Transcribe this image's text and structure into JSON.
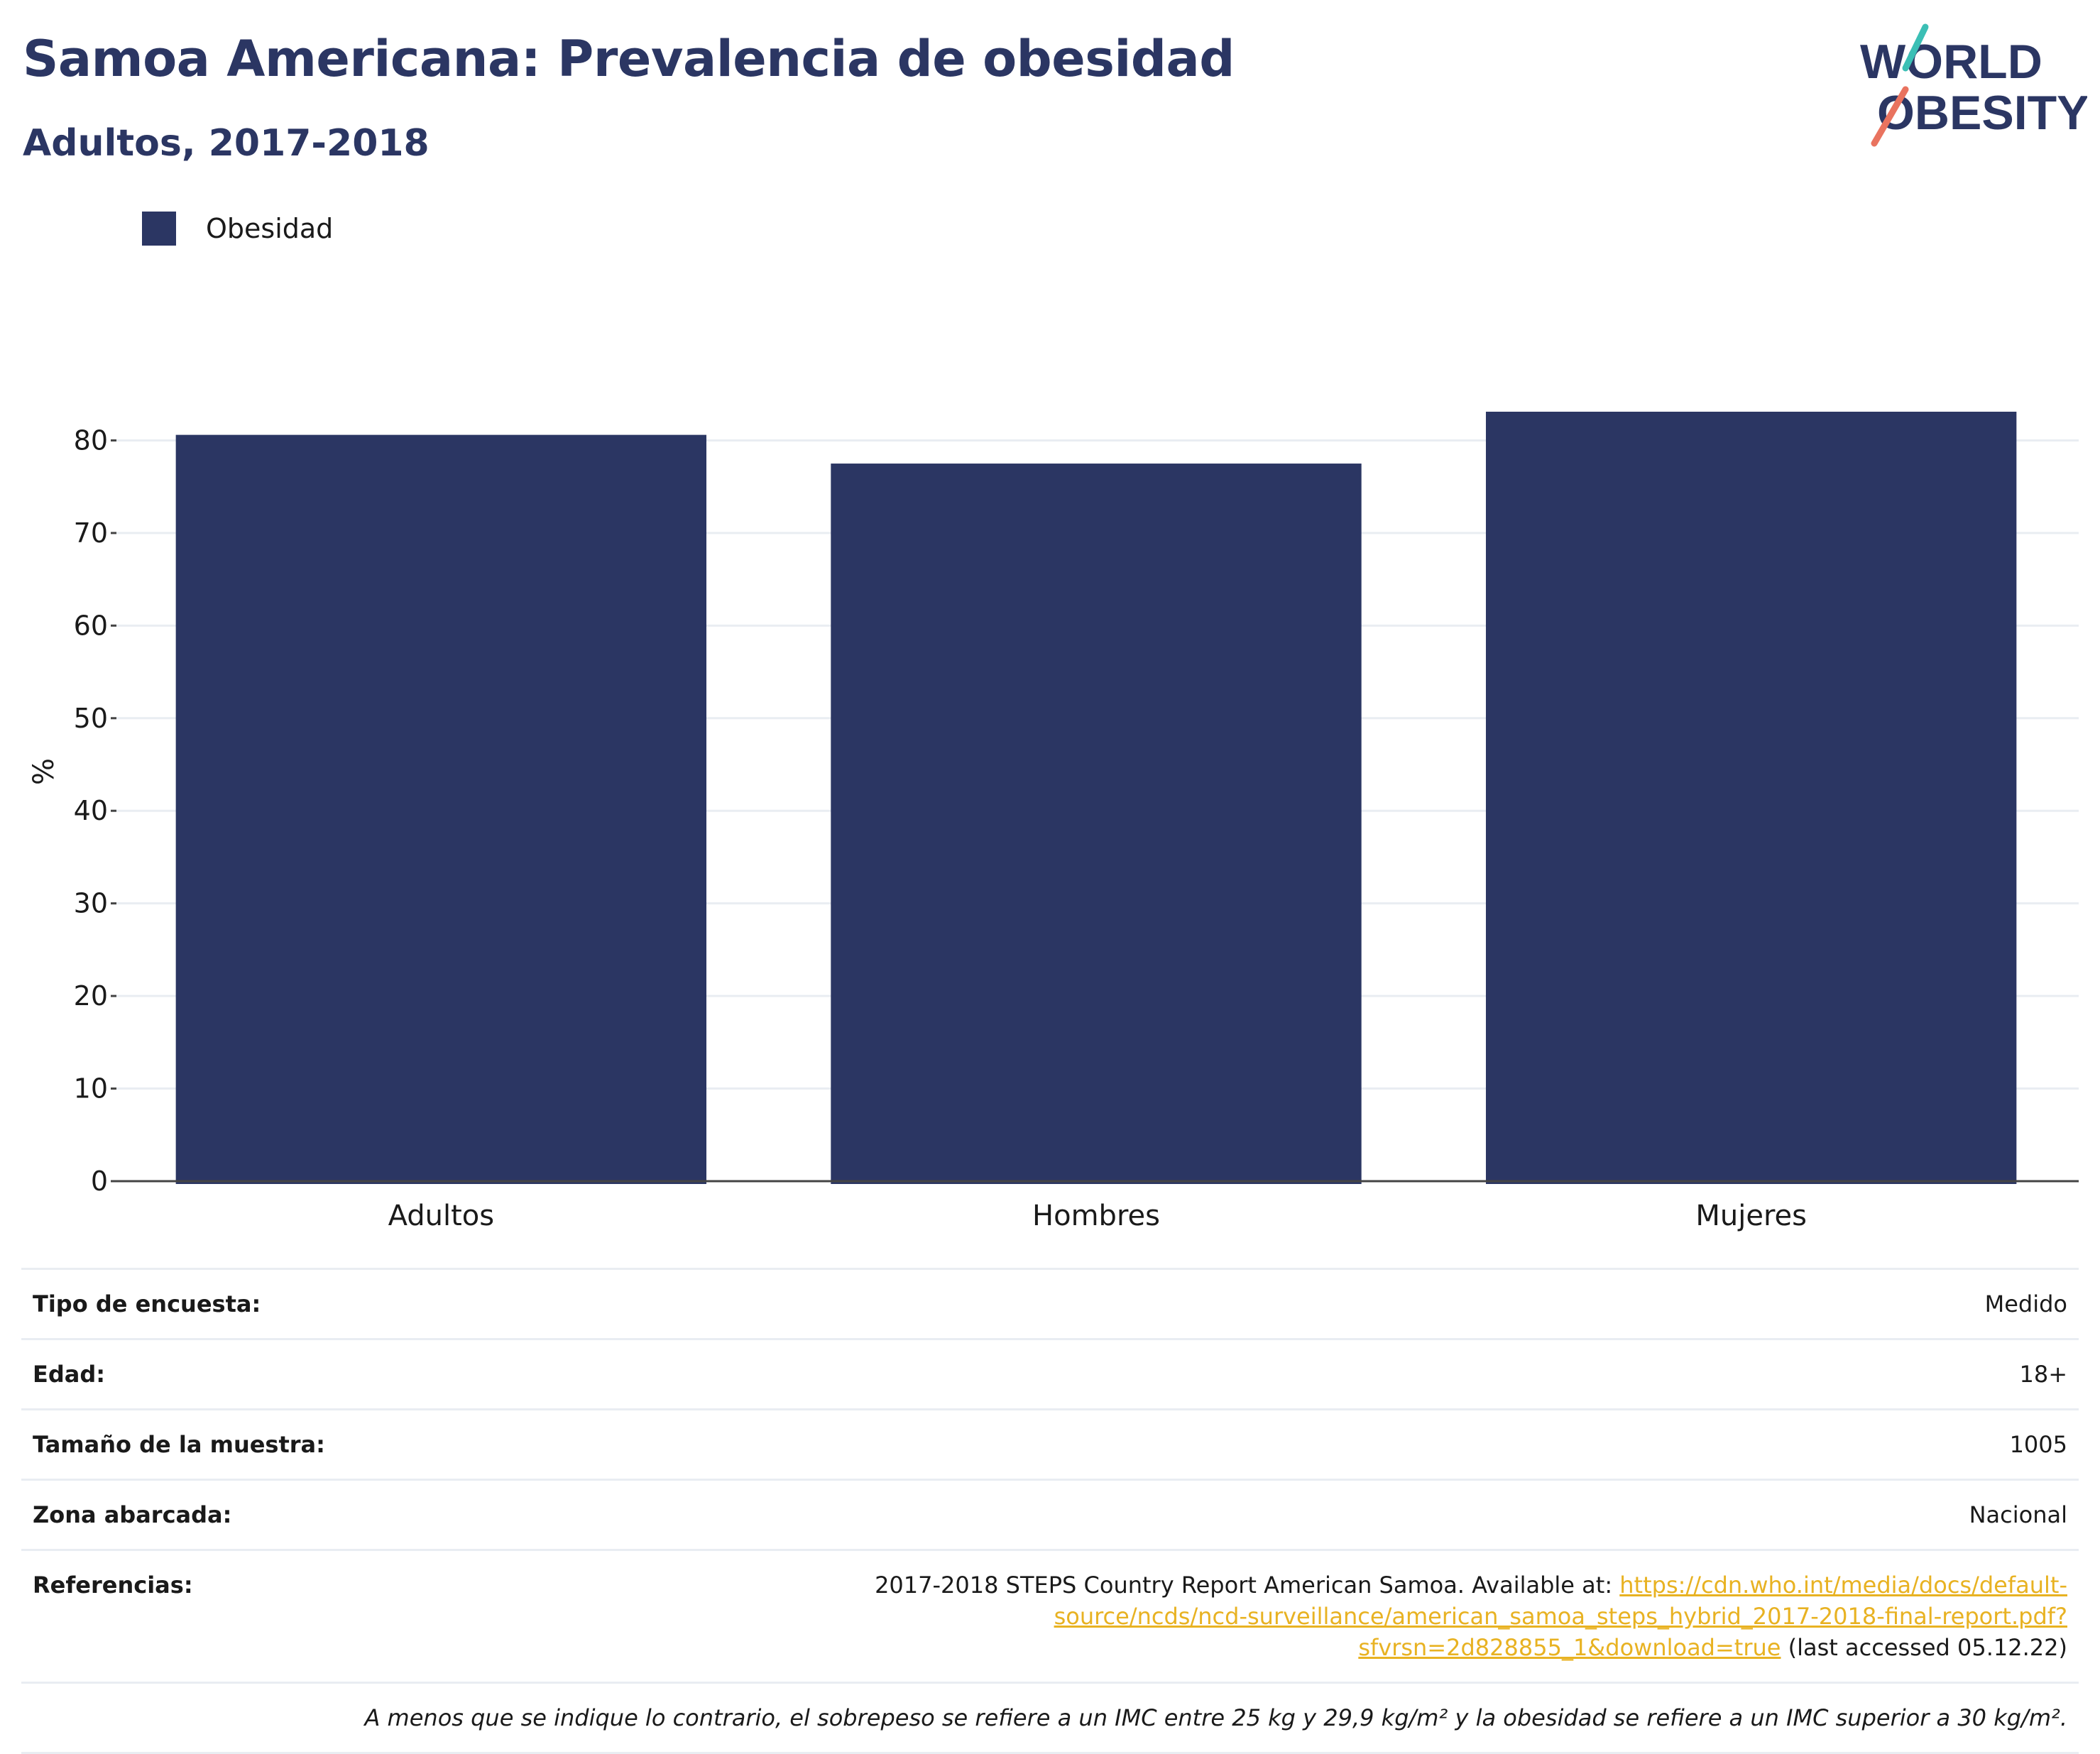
{
  "header": {
    "title": "Samoa Americana: Prevalencia de obesidad",
    "subtitle": "Adultos, 2017-2018"
  },
  "logo": {
    "line1": "WORLD",
    "line2": "OBESITY",
    "icon": "world-obesity-logo"
  },
  "colors": {
    "bar": "#2b3663",
    "title": "#2b3663",
    "link": "#e8b222",
    "grid": "#e9edf2",
    "logo_teal": "#3bbfb5",
    "logo_coral": "#e9735f"
  },
  "chart_data": {
    "type": "bar",
    "categories": [
      "Adultos",
      "Hombres",
      "Mujeres"
    ],
    "series": [
      {
        "name": "Obesidad",
        "values": [
          80.6,
          77.5,
          83.1
        ]
      }
    ],
    "ylabel": "%",
    "xlabel": "",
    "ylim": [
      0,
      90
    ],
    "yticks": [
      0,
      10,
      20,
      30,
      40,
      50,
      60,
      70,
      80
    ],
    "grid": true,
    "legend_position": "top-left"
  },
  "info": {
    "survey_type_label": "Tipo de encuesta:",
    "survey_type_value": "Medido",
    "age_label": "Edad:",
    "age_value": "18+",
    "sample_label": "Tamaño de la muestra:",
    "sample_value": "1005",
    "area_label": "Zona abarcada:",
    "area_value": "Nacional",
    "references_label": "Referencias:",
    "references_text": "2017-2018 STEPS Country Report American Samoa. Available at: ",
    "references_link": "https://cdn.who.int/media/docs/default-source/ncds/ncd-surveillance/american_samoa_steps_hybrid_2017-2018-final-report.pdf?sfvrsn=2d828855_1&download=true",
    "references_suffix": " (last accessed 05.12.22)",
    "note": "A menos que se indique lo contrario, el sobrepeso se refiere a un IMC entre 25 kg y 29,9 kg/m² y la obesidad se refiere a un IMC superior a 30 kg/m²."
  }
}
